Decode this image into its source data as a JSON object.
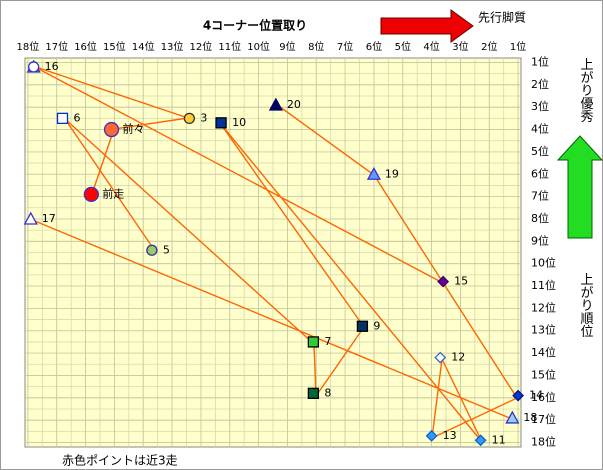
{
  "chart_data": {
    "type": "scatter",
    "title": "4コーナー位置取り",
    "top_note": "先行脚質",
    "right_note_top": "上がり優秀",
    "right_note_bottom": "上がり順位",
    "bottom_note": "赤色ポイントは近3走",
    "xlim": [
      18.1,
      0.9
    ],
    "ylim": [
      0.8,
      18.2
    ],
    "grid": true,
    "background": "#ffffcc",
    "xticks": [
      {
        "value": 18,
        "label": "18位"
      },
      {
        "value": 17,
        "label": "17位"
      },
      {
        "value": 16,
        "label": "16位"
      },
      {
        "value": 15,
        "label": "15位"
      },
      {
        "value": 14,
        "label": "14位"
      },
      {
        "value": 13,
        "label": "13位"
      },
      {
        "value": 12,
        "label": "12位"
      },
      {
        "value": 11,
        "label": "11位"
      },
      {
        "value": 10,
        "label": "10位"
      },
      {
        "value": 9,
        "label": "9位"
      },
      {
        "value": 8,
        "label": "8位"
      },
      {
        "value": 7,
        "label": "7位"
      },
      {
        "value": 6,
        "label": "6位"
      },
      {
        "value": 5,
        "label": "5位"
      },
      {
        "value": 4,
        "label": "4位"
      },
      {
        "value": 3,
        "label": "3位"
      },
      {
        "value": 2,
        "label": "2位"
      },
      {
        "value": 1,
        "label": "1位"
      }
    ],
    "yticks": [
      {
        "value": 1,
        "label": "1位"
      },
      {
        "value": 2,
        "label": "2位"
      },
      {
        "value": 3,
        "label": "3位"
      },
      {
        "value": 4,
        "label": "4位"
      },
      {
        "value": 5,
        "label": "5位"
      },
      {
        "value": 6,
        "label": "6位"
      },
      {
        "value": 7,
        "label": "7位"
      },
      {
        "value": 8,
        "label": "8位"
      },
      {
        "value": 9,
        "label": "9位"
      },
      {
        "value": 10,
        "label": "10位"
      },
      {
        "value": 11,
        "label": "11位"
      },
      {
        "value": 12,
        "label": "12位"
      },
      {
        "value": 13,
        "label": "13位"
      },
      {
        "value": 14,
        "label": "14位"
      },
      {
        "value": 15,
        "label": "15位"
      },
      {
        "value": 16,
        "label": "16位"
      },
      {
        "value": 17,
        "label": "17位"
      },
      {
        "value": 18,
        "label": "18位"
      }
    ],
    "points": [
      {
        "label": null,
        "x": 17.8,
        "y": 1.2,
        "marker": "triangle",
        "color": "#b8c4f4",
        "edge": "#3333cc"
      },
      {
        "label": "16",
        "x": 17.8,
        "y": 1.2,
        "marker": "circle",
        "color": "#ffffff",
        "edge": "#3333cc"
      },
      {
        "label": "3",
        "x": 12.4,
        "y": 3.5,
        "marker": "circle",
        "color": "#ffcc33",
        "edge": "#333333"
      },
      {
        "label": "前々",
        "x": 15.1,
        "y": 4.0,
        "marker": "bigcircle",
        "color": "#ff6633",
        "edge": "#3333cc"
      },
      {
        "label": "10",
        "x": 11.3,
        "y": 3.7,
        "marker": "square",
        "color": "#003399",
        "edge": "#000000"
      },
      {
        "label": "20",
        "x": 9.4,
        "y": 2.9,
        "marker": "triangle",
        "color": "#000066",
        "edge": "#000066"
      },
      {
        "label": "6",
        "x": 16.8,
        "y": 3.5,
        "marker": "square",
        "color": "#ffffff",
        "edge": "#0033cc"
      },
      {
        "label": "前走",
        "x": 15.8,
        "y": 6.9,
        "marker": "bigcircle",
        "color": "#ff0000",
        "edge": "#3333cc"
      },
      {
        "label": "19",
        "x": 6.0,
        "y": 6.0,
        "marker": "triangle",
        "color": "#6699ff",
        "edge": "#3333cc"
      },
      {
        "label": "17",
        "x": 17.9,
        "y": 8.0,
        "marker": "triangle",
        "color": "#ffffff",
        "edge": "#3333cc"
      },
      {
        "label": "5",
        "x": 13.7,
        "y": 9.4,
        "marker": "circle",
        "color": "#99cc66",
        "edge": "#333399"
      },
      {
        "label": "15",
        "x": 3.6,
        "y": 10.8,
        "marker": "diamond",
        "color": "#660099",
        "edge": "#330066"
      },
      {
        "label": "9",
        "x": 6.4,
        "y": 12.8,
        "marker": "square",
        "color": "#003366",
        "edge": "#000000"
      },
      {
        "label": "7",
        "x": 8.1,
        "y": 13.5,
        "marker": "square",
        "color": "#33cc33",
        "edge": "#000000"
      },
      {
        "label": "12",
        "x": 3.7,
        "y": 14.2,
        "marker": "diamond",
        "color": "#ffffff",
        "edge": "#3366cc"
      },
      {
        "label": "8",
        "x": 8.1,
        "y": 15.8,
        "marker": "square",
        "color": "#006633",
        "edge": "#000000"
      },
      {
        "label": "14",
        "x": 1.0,
        "y": 15.9,
        "marker": "diamond",
        "color": "#0033cc",
        "edge": "#001a80"
      },
      {
        "label": "18",
        "x": 1.2,
        "y": 16.9,
        "marker": "triangle",
        "color": "#99ccff",
        "edge": "#3333cc"
      },
      {
        "label": "13",
        "x": 4.0,
        "y": 17.7,
        "marker": "diamond",
        "color": "#3399ff",
        "edge": "#0066cc"
      },
      {
        "label": "11",
        "x": 2.3,
        "y": 17.9,
        "marker": "diamond",
        "color": "#3399ff",
        "edge": "#0066cc"
      }
    ]
  }
}
